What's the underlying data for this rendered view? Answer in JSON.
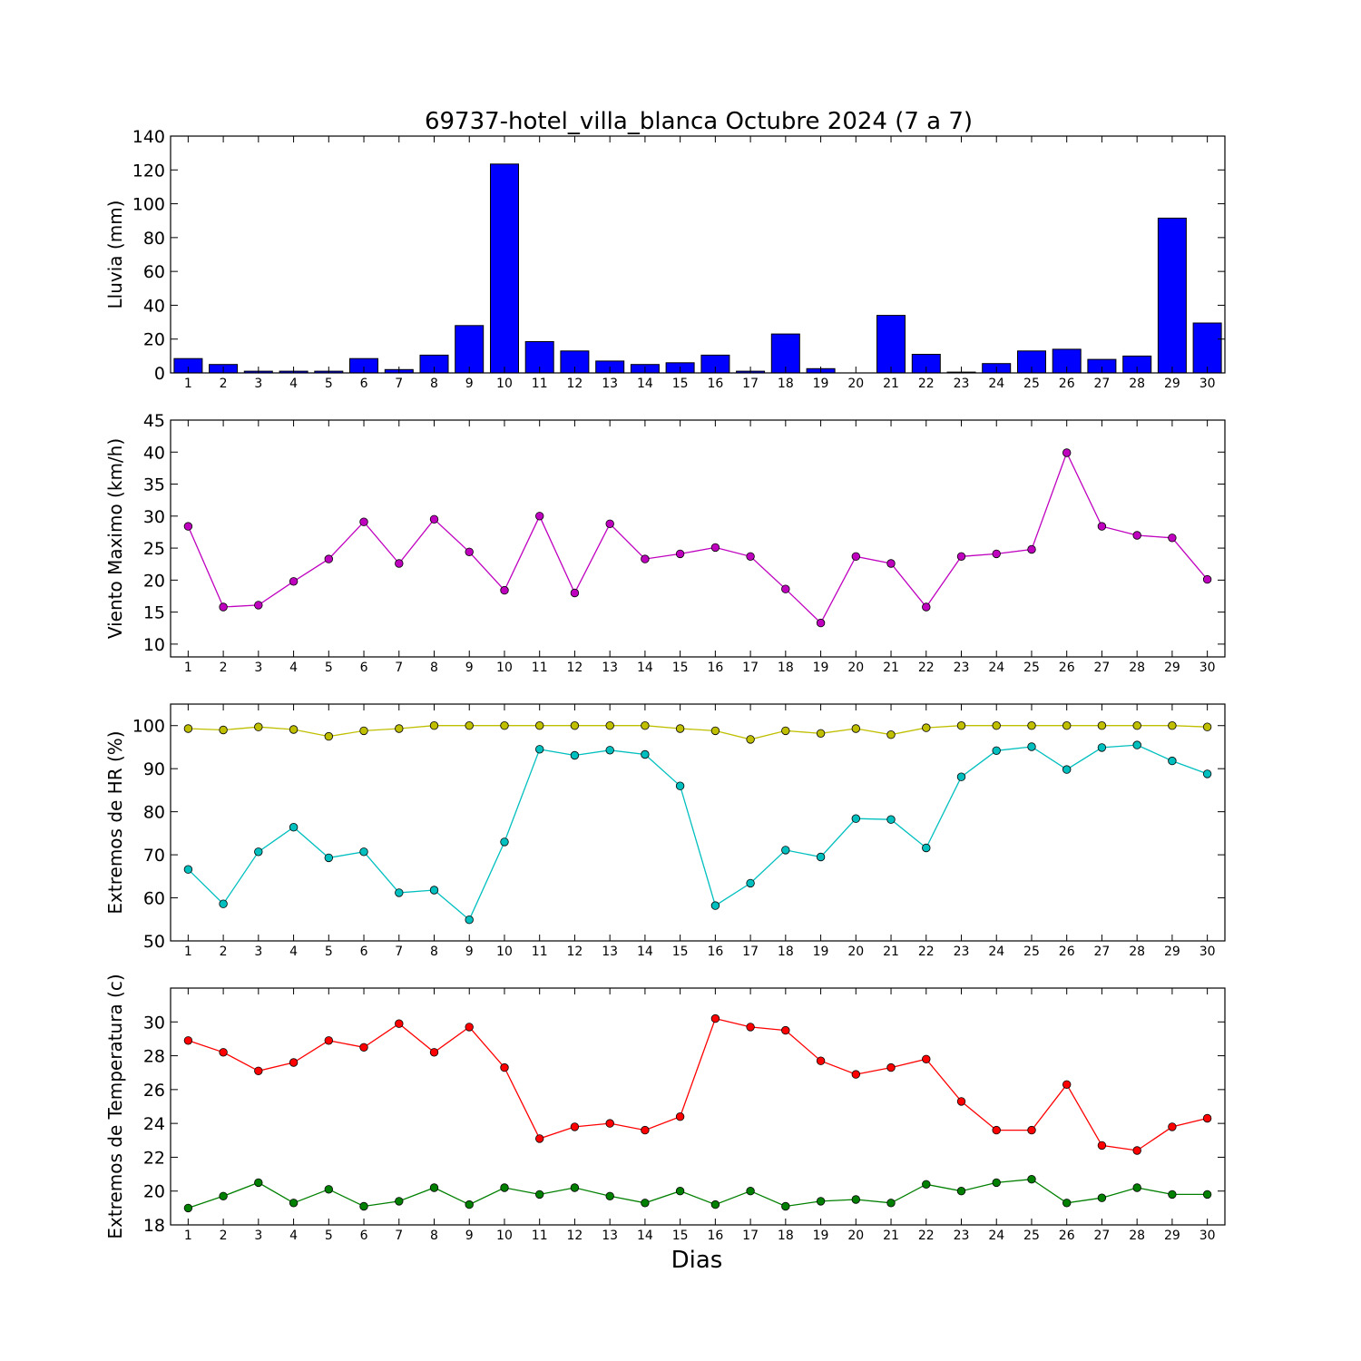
{
  "chart_data": [
    {
      "type": "bar",
      "title": "69737-hotel_villa_blanca Octubre 2024  (7 a 7)",
      "ylabel": "Lluvia (mm)",
      "ylim": [
        0,
        140
      ],
      "yticks": [
        0,
        20,
        40,
        60,
        80,
        100,
        120,
        140
      ],
      "x": [
        1,
        2,
        3,
        4,
        5,
        6,
        7,
        8,
        9,
        10,
        11,
        12,
        13,
        14,
        15,
        16,
        17,
        18,
        19,
        20,
        21,
        22,
        23,
        24,
        25,
        26,
        27,
        28,
        29,
        30
      ],
      "series": [
        {
          "color": "#0000ff",
          "values": [
            8.5,
            5,
            1,
            1,
            1,
            8.5,
            2,
            10.5,
            28,
            123.5,
            18.5,
            13,
            7,
            5,
            6,
            10.5,
            1,
            23,
            2.5,
            0,
            34,
            11,
            0.5,
            5.5,
            13,
            14,
            8,
            10,
            91.5,
            29.5
          ]
        }
      ],
      "grid": false
    },
    {
      "type": "line",
      "ylabel": "Viento Maximo (km/h)",
      "ylim": [
        8,
        45
      ],
      "yticks": [
        10,
        15,
        20,
        25,
        30,
        35,
        40,
        45
      ],
      "x": [
        1,
        2,
        3,
        4,
        5,
        6,
        7,
        8,
        9,
        10,
        11,
        12,
        13,
        14,
        15,
        16,
        17,
        18,
        19,
        20,
        21,
        22,
        23,
        24,
        25,
        26,
        27,
        28,
        29,
        30
      ],
      "series": [
        {
          "color": "#bf00bf",
          "values": [
            28.4,
            15.8,
            16.1,
            19.8,
            23.3,
            29.1,
            22.6,
            29.5,
            24.4,
            18.4,
            30,
            18,
            28.8,
            23.3,
            24.1,
            25.1,
            23.7,
            18.6,
            13.3,
            23.7,
            22.6,
            15.8,
            23.7,
            24.1,
            24.8,
            39.9,
            28.4,
            27,
            26.6,
            20.1
          ]
        }
      ],
      "grid": false
    },
    {
      "type": "line",
      "ylabel": "Extremos de HR (%)",
      "ylim": [
        50,
        105
      ],
      "yticks": [
        50,
        60,
        70,
        80,
        90,
        100
      ],
      "x": [
        1,
        2,
        3,
        4,
        5,
        6,
        7,
        8,
        9,
        10,
        11,
        12,
        13,
        14,
        15,
        16,
        17,
        18,
        19,
        20,
        21,
        22,
        23,
        24,
        25,
        26,
        27,
        28,
        29,
        30
      ],
      "series": [
        {
          "color": "#bfbf00",
          "values": [
            99.3,
            99,
            99.7,
            99.1,
            97.5,
            98.8,
            99.3,
            100,
            100,
            100,
            100,
            100,
            100,
            100,
            99.3,
            98.8,
            96.8,
            98.8,
            98.2,
            99.3,
            97.9,
            99.5,
            100,
            100,
            100,
            100,
            100,
            100,
            100,
            99.7
          ]
        },
        {
          "color": "#00bfbf",
          "values": [
            66.6,
            58.6,
            70.7,
            76.4,
            69.3,
            70.7,
            61.2,
            61.8,
            54.9,
            73,
            94.5,
            93.1,
            94.3,
            93.3,
            86,
            58.2,
            63.4,
            71.1,
            69.5,
            78.4,
            78.2,
            71.6,
            88.1,
            94.2,
            95.1,
            89.8,
            94.9,
            95.5,
            91.8,
            88.8
          ]
        }
      ],
      "grid": false
    },
    {
      "type": "line",
      "ylabel": "Extremos de Temperatura (c)",
      "xlabel": "Dias",
      "ylim": [
        18,
        32
      ],
      "yticks": [
        18,
        20,
        22,
        24,
        26,
        28,
        30
      ],
      "x": [
        1,
        2,
        3,
        4,
        5,
        6,
        7,
        8,
        9,
        10,
        11,
        12,
        13,
        14,
        15,
        16,
        17,
        18,
        19,
        20,
        21,
        22,
        23,
        24,
        25,
        26,
        27,
        28,
        29,
        30
      ],
      "series": [
        {
          "color": "#ff0000",
          "values": [
            28.9,
            28.2,
            27.1,
            27.6,
            28.9,
            28.5,
            29.9,
            28.2,
            29.7,
            27.3,
            23.1,
            23.8,
            24,
            23.6,
            24.4,
            30.2,
            29.7,
            29.5,
            27.7,
            26.9,
            27.3,
            27.8,
            25.3,
            23.6,
            23.6,
            26.3,
            22.7,
            22.4,
            23.8,
            24.3
          ]
        },
        {
          "color": "#008000",
          "values": [
            19,
            19.7,
            20.5,
            19.3,
            20.1,
            19.1,
            19.4,
            20.2,
            19.2,
            20.2,
            19.8,
            20.2,
            19.7,
            19.3,
            20,
            19.2,
            20,
            19.1,
            19.4,
            19.5,
            19.3,
            20.4,
            20,
            20.5,
            20.7,
            19.3,
            19.6,
            20.2,
            19.8,
            19.8
          ]
        }
      ],
      "grid": false
    }
  ]
}
